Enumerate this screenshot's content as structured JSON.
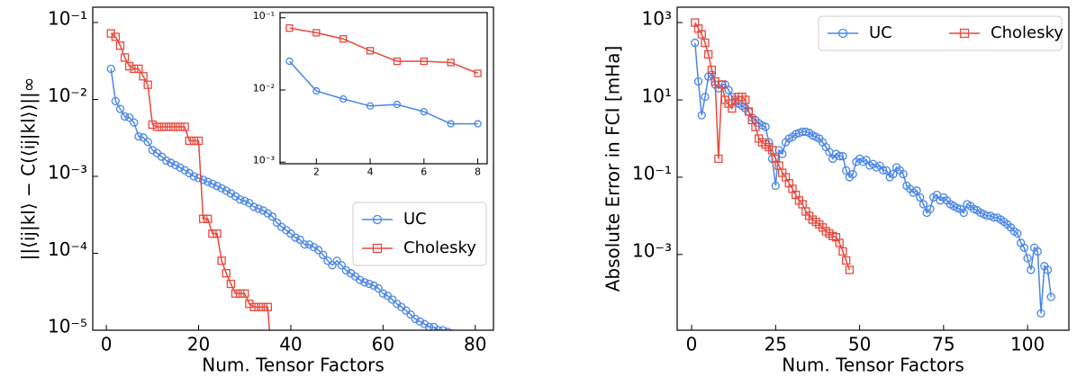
{
  "chart_data": [
    {
      "type": "line",
      "x_label": "Num. Tensor Factors",
      "y_label": "||⟨ij|kl⟩ − C(⟨ij|kl⟩)||∞",
      "xlim": [
        -2.95,
        83.95
      ],
      "ylim": [
        1e-05,
        0.158
      ],
      "log_y": true,
      "xticks": [
        0,
        20,
        40,
        60,
        80
      ],
      "yticks": [
        {
          "value": 0.1,
          "label": "10⁻¹"
        },
        {
          "value": 0.01,
          "label": "10⁻²"
        },
        {
          "value": 0.001,
          "label": "10⁻³"
        },
        {
          "value": 0.0001,
          "label": "10⁻⁴"
        },
        {
          "value": 1e-05,
          "label": "10⁻⁵"
        }
      ],
      "legend": "lower right",
      "series": [
        {
          "name": "UC",
          "color": "#4a86e8",
          "marker": "circle",
          "x": [
            1,
            2,
            3,
            4,
            5,
            6,
            7,
            8,
            9,
            10,
            11,
            12,
            13,
            14,
            15,
            16,
            17,
            18,
            19,
            20,
            21,
            22,
            23,
            24,
            25,
            26,
            27,
            28,
            29,
            30,
            31,
            32,
            33,
            34,
            35,
            36,
            37,
            38,
            39,
            40,
            41,
            42,
            43,
            44,
            45,
            46,
            47,
            48,
            49,
            50,
            51,
            52,
            53,
            54,
            55,
            56,
            57,
            58,
            59,
            60,
            61,
            62,
            63,
            64,
            65,
            66,
            67,
            68,
            69,
            70,
            71,
            72,
            73,
            74,
            75,
            76,
            77,
            78,
            79,
            80
          ],
          "values": [
            0.025,
            0.0095,
            0.0075,
            0.006,
            0.0058,
            0.005,
            0.0033,
            0.0032,
            0.0028,
            0.0022,
            0.002,
            0.0018,
            0.0016,
            0.0015,
            0.0014,
            0.0013,
            0.0012,
            0.0011,
            0.001,
            0.00095,
            0.0009,
            0.00085,
            0.0008,
            0.00075,
            0.0007,
            0.00065,
            0.0006,
            0.00055,
            0.0005,
            0.00048,
            0.00045,
            0.0004,
            0.00038,
            0.00036,
            0.00033,
            0.0003,
            0.00025,
            0.00022,
            0.0002,
            0.00018,
            0.00016,
            0.00015,
            0.00013,
            0.00013,
            0.00012,
            0.00011,
            9.5e-05,
            8e-05,
            7e-05,
            8e-05,
            7e-05,
            6e-05,
            5.5e-05,
            5e-05,
            4.5e-05,
            4.2e-05,
            4e-05,
            3.8e-05,
            3.5e-05,
            3e-05,
            2.8e-05,
            2.5e-05,
            2.2e-05,
            2e-05,
            1.8e-05,
            1.6e-05,
            1.4e-05,
            1.3e-05,
            1.2e-05,
            1.1e-05,
            1.1e-05,
            1e-05,
            1e-05,
            9.5e-06,
            9e-06,
            8.5e-06,
            8e-06,
            7.5e-06,
            7e-06,
            6.5e-06
          ]
        },
        {
          "name": "Cholesky",
          "color": "#e8483c",
          "marker": "square",
          "x": [
            1,
            2,
            3,
            4,
            5,
            6,
            7,
            8,
            9,
            10,
            11,
            12,
            13,
            14,
            15,
            16,
            17,
            18,
            19,
            20,
            21,
            22,
            23,
            24,
            25,
            26,
            27,
            28,
            29,
            30,
            31,
            32,
            33,
            34,
            35,
            36
          ],
          "values": [
            0.072,
            0.065,
            0.05,
            0.035,
            0.027,
            0.025,
            0.025,
            0.02,
            0.0155,
            0.0047,
            0.0044,
            0.0044,
            0.0044,
            0.0044,
            0.0044,
            0.0044,
            0.0044,
            0.0029,
            0.0029,
            0.0029,
            0.00028,
            0.00028,
            0.00018,
            0.00018,
            8e-05,
            5.5e-05,
            4e-05,
            3e-05,
            3e-05,
            3e-05,
            2.2e-05,
            2e-05,
            2e-05,
            2e-05,
            2e-05,
            3e-06
          ]
        }
      ]
    },
    {
      "type": "line",
      "xlim": [
        0.65,
        8.35
      ],
      "ylim": [
        0.00095,
        0.118
      ],
      "log_y": true,
      "xticks": [
        2,
        4,
        6,
        8
      ],
      "yticks": [
        {
          "value": 0.1,
          "label": "10⁻¹"
        },
        {
          "value": 0.01,
          "label": "10⁻²"
        },
        {
          "value": 0.001,
          "label": "10⁻³"
        }
      ],
      "series": [
        {
          "name": "UC",
          "color": "#4a86e8",
          "marker": "circle",
          "x": [
            1,
            2,
            3,
            4,
            5,
            6,
            7,
            8
          ],
          "values": [
            0.025,
            0.0097,
            0.0075,
            0.006,
            0.0063,
            0.005,
            0.0034,
            0.0034
          ]
        },
        {
          "name": "Cholesky",
          "color": "#e8483c",
          "marker": "square",
          "x": [
            1,
            2,
            3,
            4,
            5,
            6,
            7,
            8
          ],
          "values": [
            0.072,
            0.062,
            0.051,
            0.035,
            0.025,
            0.025,
            0.024,
            0.017
          ]
        }
      ]
    },
    {
      "type": "line",
      "x_label": "Num. Tensor Factors",
      "y_label": "Absolute Error in FCI [mHa]",
      "xlim": [
        -4.3,
        112.3
      ],
      "ylim": [
        1.1e-05,
        2500
      ],
      "log_y": true,
      "xticks": [
        0,
        25,
        50,
        75,
        100
      ],
      "yticks": [
        {
          "value": 1000,
          "label": "10³"
        },
        {
          "value": 10,
          "label": "10¹"
        },
        {
          "value": 0.1,
          "label": "10⁻¹"
        },
        {
          "value": 0.001,
          "label": "10⁻³"
        }
      ],
      "legend": "upper right",
      "legend_columns": 2,
      "series": [
        {
          "name": "UC",
          "color": "#4a86e8",
          "marker": "circle",
          "x": [
            1,
            2,
            3,
            4,
            5,
            6,
            7,
            8,
            9,
            10,
            11,
            12,
            13,
            14,
            15,
            16,
            17,
            18,
            19,
            20,
            21,
            22,
            23,
            24,
            25,
            26,
            27,
            28,
            29,
            30,
            31,
            32,
            33,
            34,
            35,
            36,
            37,
            38,
            39,
            40,
            41,
            42,
            43,
            44,
            45,
            46,
            47,
            48,
            49,
            50,
            51,
            52,
            53,
            54,
            55,
            56,
            57,
            58,
            59,
            60,
            61,
            62,
            63,
            64,
            65,
            66,
            67,
            68,
            69,
            70,
            71,
            72,
            73,
            74,
            75,
            76,
            77,
            78,
            79,
            80,
            81,
            82,
            83,
            84,
            85,
            86,
            87,
            88,
            89,
            90,
            91,
            92,
            93,
            94,
            95,
            96,
            97,
            98,
            99,
            100,
            101,
            102,
            103,
            104,
            105,
            106,
            107
          ],
          "values": [
            300,
            30,
            4,
            12,
            40,
            45,
            25,
            20,
            25,
            25,
            18,
            12,
            9,
            8,
            7,
            6,
            5,
            3.5,
            3,
            2.5,
            2.2,
            2,
            0.8,
            0.3,
            0.06,
            0.5,
            0.4,
            0.8,
            1.0,
            1.1,
            1.3,
            1.4,
            1.5,
            1.5,
            1.4,
            1.2,
            1.1,
            1.0,
            0.8,
            0.6,
            0.45,
            0.3,
            0.4,
            0.35,
            0.35,
            0.15,
            0.1,
            0.12,
            0.25,
            0.3,
            0.25,
            0.28,
            0.2,
            0.22,
            0.18,
            0.2,
            0.15,
            0.15,
            0.1,
            0.12,
            0.18,
            0.15,
            0.12,
            0.06,
            0.05,
            0.04,
            0.045,
            0.03,
            0.02,
            0.012,
            0.015,
            0.03,
            0.035,
            0.025,
            0.03,
            0.025,
            0.02,
            0.018,
            0.016,
            0.015,
            0.012,
            0.02,
            0.018,
            0.015,
            0.014,
            0.012,
            0.011,
            0.01,
            0.01,
            0.009,
            0.009,
            0.008,
            0.007,
            0.006,
            0.005,
            0.004,
            0.0035,
            0.002,
            0.0015,
            0.0008,
            0.0004,
            0.0015,
            0.0012,
            3e-05,
            0.0005,
            0.0004,
            8e-05
          ]
        },
        {
          "name": "Cholesky",
          "color": "#e8483c",
          "marker": "square",
          "x": [
            1,
            2,
            3,
            4,
            5,
            6,
            7,
            8,
            9,
            10,
            11,
            12,
            13,
            14,
            15,
            16,
            17,
            18,
            19,
            20,
            21,
            22,
            23,
            24,
            25,
            26,
            27,
            28,
            29,
            30,
            31,
            32,
            33,
            34,
            35,
            36,
            37,
            38,
            39,
            40,
            41,
            42,
            43,
            44,
            45,
            46,
            47
          ],
          "values": [
            1000,
            700,
            500,
            300,
            150,
            60,
            30,
            0.3,
            25,
            10,
            8,
            6,
            10,
            12,
            12,
            10,
            5,
            3,
            2,
            1,
            0.8,
            0.7,
            0.6,
            0.5,
            0.3,
            0.2,
            0.13,
            0.1,
            0.07,
            0.05,
            0.035,
            0.025,
            0.02,
            0.013,
            0.01,
            0.008,
            0.007,
            0.006,
            0.005,
            0.004,
            0.0035,
            0.003,
            0.0028,
            0.002,
            0.0012,
            0.0007,
            0.0004
          ]
        }
      ]
    }
  ]
}
